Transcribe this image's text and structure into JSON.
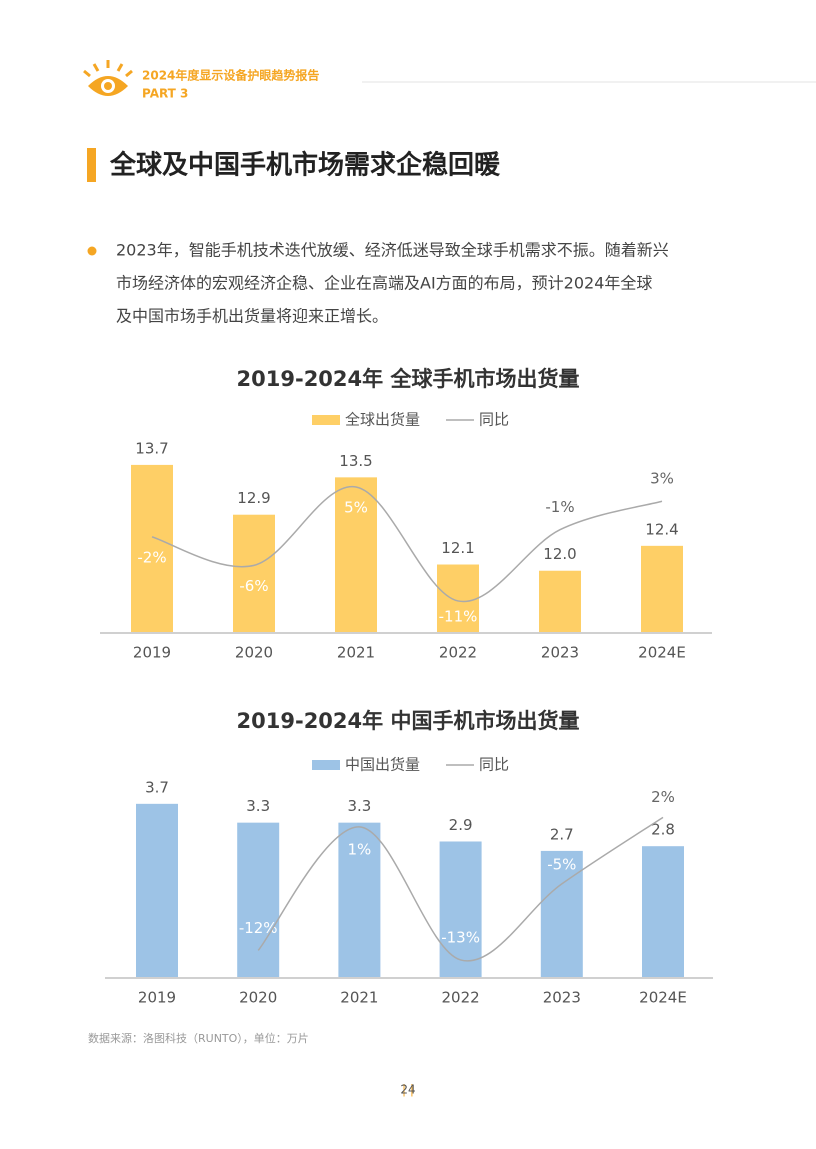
{
  "header": {
    "title": "2024年度显示设备护眼趋势报告",
    "part": "PART 3"
  },
  "section_title": "全球及中国手机市场需求企稳回暖",
  "bullet_lines": [
    "2023年，智能手机技术迭代放缓、经济低迷导致全球手机需求不振。随着新兴",
    "市场经济体的宏观经济企稳、企业在高端及AI方面的布局，预计2024年全球",
    "及中国市场手机出货量将迎来正增长。"
  ],
  "chart_data": [
    {
      "type": "bar",
      "title": "2019-2024年 全球手机市场出货量",
      "categories": [
        "2019",
        "2020",
        "2021",
        "2022",
        "2023",
        "2024E"
      ],
      "ylim": [
        11,
        14.1
      ],
      "y2lim": [
        -15.5,
        11.6
      ],
      "series": [
        {
          "name": "全球出货量",
          "color": "#fecf66",
          "values": [
            13.7,
            12.9,
            13.5,
            12.1,
            12.0,
            12.4
          ],
          "value_labels": [
            "13.7",
            "12.9",
            "13.5",
            "12.1",
            "12.0",
            "12.4"
          ]
        },
        {
          "name": "同比",
          "color": "#aaaaaa",
          "axis": "y2",
          "values": [
            -2,
            -6,
            5,
            -11,
            -1,
            3
          ],
          "value_labels": [
            "-2%",
            "-6%",
            "5%",
            "-11%",
            "-1%",
            "3%"
          ]
        }
      ]
    },
    {
      "type": "bar",
      "title": "2019-2024年 中国手机市场出货量",
      "categories": [
        "2019",
        "2020",
        "2021",
        "2022",
        "2023",
        "2024E"
      ],
      "ylim": [
        0,
        4.1
      ],
      "y2lim": [
        -14.9,
        5.4
      ],
      "series": [
        {
          "name": "中国出货量",
          "color": "#9dc3e6",
          "values": [
            3.7,
            3.3,
            3.3,
            2.9,
            2.7,
            2.8
          ],
          "value_labels": [
            "3.7",
            "3.3",
            "3.3",
            "2.9",
            "2.7",
            "2.8"
          ]
        },
        {
          "name": "同比",
          "color": "#aaaaaa",
          "axis": "y2",
          "values": [
            null,
            -12,
            1,
            -13,
            -5,
            2
          ],
          "value_labels": [
            null,
            "-12%",
            "1%",
            "-13%",
            "-5%",
            "2%"
          ]
        }
      ]
    }
  ],
  "source": "数据来源：洛图科技（RUNTO），单位：万片",
  "page_number": "24"
}
